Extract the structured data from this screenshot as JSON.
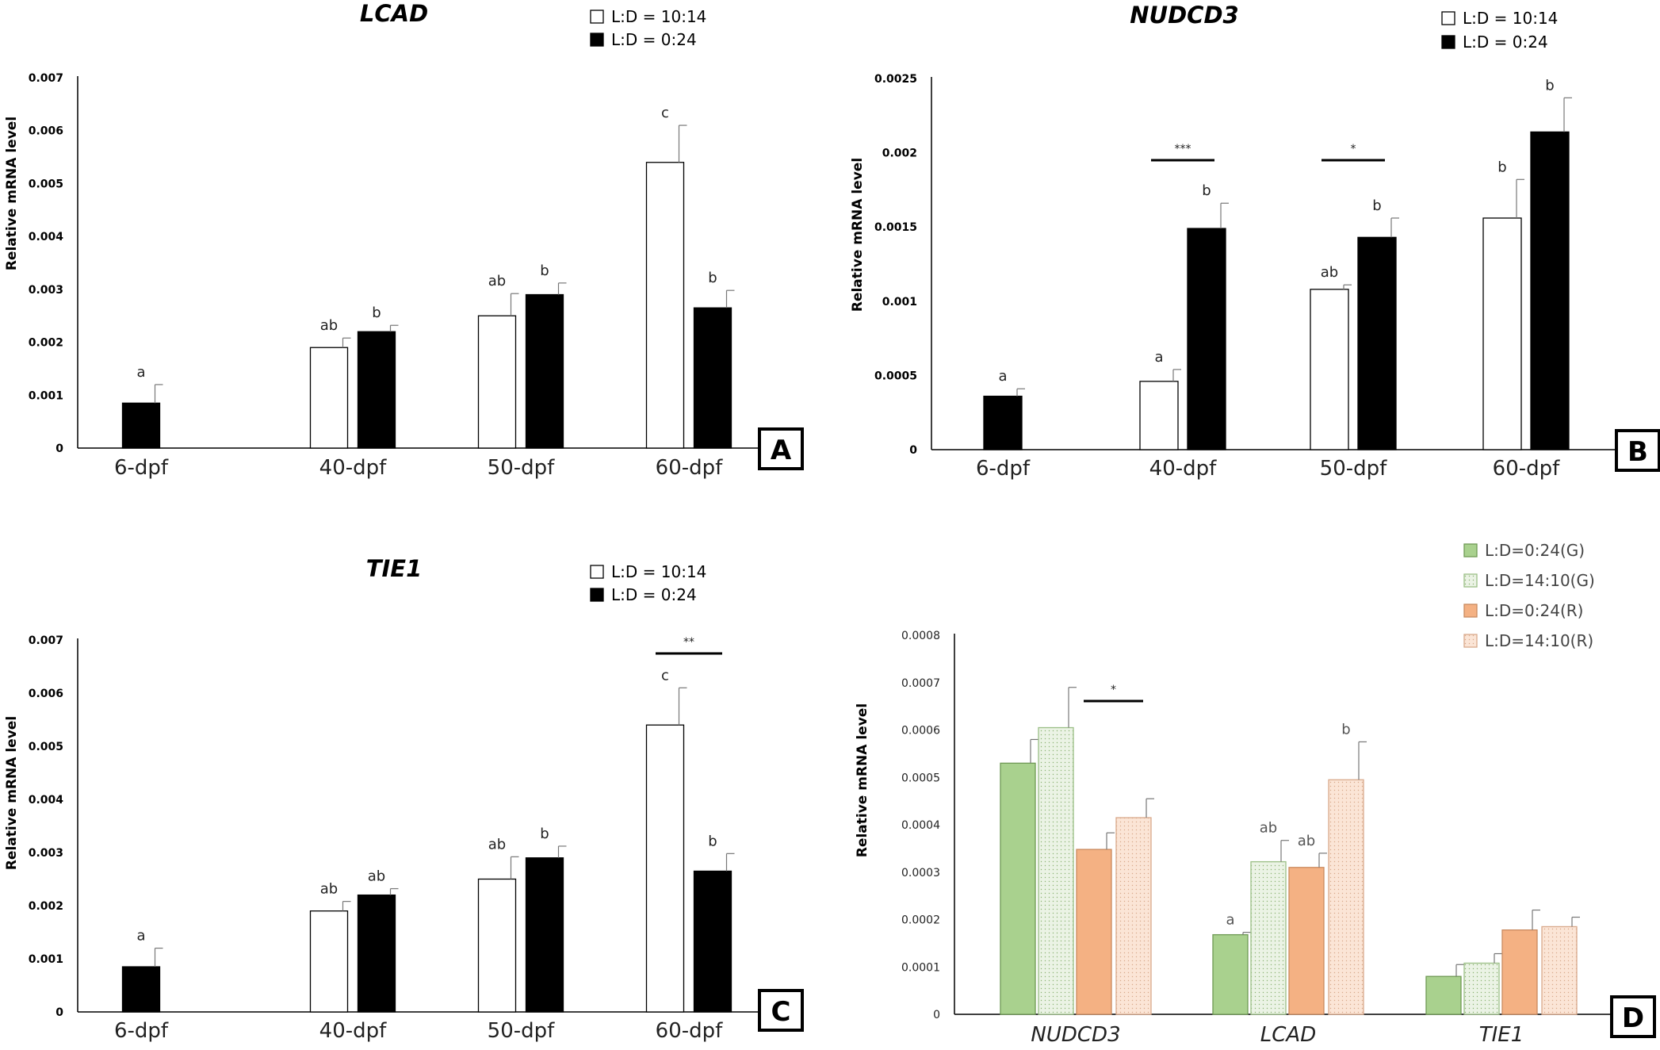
{
  "chart_data": [
    {
      "panel_label": "A",
      "type": "bar",
      "title": "LCAD",
      "ylabel": "Relative mRNA level",
      "categories": [
        "6-dpf",
        "40-dpf",
        "50-dpf",
        "60-dpf"
      ],
      "yticks": [
        "0",
        "0.001",
        "0.002",
        "0.003",
        "0.004",
        "0.005",
        "0.006",
        "0.007"
      ],
      "ylim": [
        0,
        0.007
      ],
      "grid": false,
      "legend_position": "top-right",
      "colors": {
        "L:D = 10:14": "#ffffff",
        "L:D = 0:24": "#000000"
      },
      "series": [
        {
          "name": "L:D = 10:14",
          "fill": "#ffffff",
          "values": [
            null,
            0.0019,
            0.0025,
            0.0054
          ],
          "errors": [
            null,
            0.00018,
            0.00042,
            0.0007
          ],
          "letters": [
            "",
            "ab",
            "ab",
            "c"
          ]
        },
        {
          "name": "L:D = 0:24",
          "fill": "#000000",
          "values": [
            0.00085,
            0.0022,
            0.0029,
            0.00265
          ],
          "errors": [
            0.00035,
            0.00012,
            0.00022,
            0.00033
          ],
          "letters": [
            "a",
            "b",
            "b",
            "b"
          ]
        }
      ],
      "significance": []
    },
    {
      "panel_label": "B",
      "type": "bar",
      "title": "NUDCD3",
      "ylabel": "Relative mRNA level",
      "categories": [
        "6-dpf",
        "40-dpf",
        "50-dpf",
        "60-dpf"
      ],
      "yticks": [
        "0",
        "0.0005",
        "0.001",
        "0.0015",
        "0.002",
        "0.0025"
      ],
      "ylim": [
        0,
        0.0025
      ],
      "grid": false,
      "legend_position": "top-right",
      "colors": {
        "L:D = 10:14": "#ffffff",
        "L:D = 0:24": "#000000"
      },
      "series": [
        {
          "name": "L:D = 10:14",
          "fill": "#ffffff",
          "values": [
            null,
            0.00046,
            0.00108,
            0.00156
          ],
          "errors": [
            null,
            8e-05,
            3e-05,
            0.00026
          ],
          "letters": [
            "",
            "a",
            "ab",
            "b"
          ]
        },
        {
          "name": "L:D = 0:24",
          "fill": "#000000",
          "values": [
            0.00036,
            0.00149,
            0.00143,
            0.00214
          ],
          "errors": [
            5e-05,
            0.00017,
            0.00013,
            0.00023
          ],
          "letters": [
            "a",
            "b",
            "b",
            "b"
          ]
        }
      ],
      "significance": [
        {
          "category_index": 1,
          "label": "***"
        },
        {
          "category_index": 2,
          "label": "*"
        }
      ]
    },
    {
      "panel_label": "C",
      "type": "bar",
      "title": "TIE1",
      "ylabel": "Relative mRNA level",
      "categories": [
        "6-dpf",
        "40-dpf",
        "50-dpf",
        "60-dpf"
      ],
      "yticks": [
        "0",
        "0.001",
        "0.002",
        "0.003",
        "0.004",
        "0.005",
        "0.006",
        "0.007"
      ],
      "ylim": [
        0,
        0.007
      ],
      "grid": false,
      "legend_position": "top-right",
      "colors": {
        "L:D = 10:14": "#ffffff",
        "L:D = 0:24": "#000000"
      },
      "series": [
        {
          "name": "L:D = 10:14",
          "fill": "#ffffff",
          "values": [
            null,
            0.0019,
            0.0025,
            0.0054
          ],
          "errors": [
            null,
            0.00018,
            0.00042,
            0.0007
          ],
          "letters": [
            "",
            "ab",
            "ab",
            "c"
          ]
        },
        {
          "name": "L:D = 0:24",
          "fill": "#000000",
          "values": [
            0.00085,
            0.0022,
            0.0029,
            0.00265
          ],
          "errors": [
            0.00035,
            0.00012,
            0.00022,
            0.00033
          ],
          "letters": [
            "a",
            "ab",
            "b",
            "b"
          ]
        }
      ],
      "significance": [
        {
          "category_index": 3,
          "label": "**"
        }
      ]
    },
    {
      "panel_label": "D",
      "type": "bar",
      "title": "",
      "ylabel": "Relative mRNA level",
      "categories": [
        "NUDCD3",
        "LCAD",
        "TIE1"
      ],
      "yticks": [
        "0",
        "0.0001",
        "0.0002",
        "0.0003",
        "0.0004",
        "0.0005",
        "0.0006",
        "0.0007",
        "0.0008"
      ],
      "ylim": [
        0,
        0.0008
      ],
      "grid": false,
      "legend_position": "top-right",
      "colors": {
        "L:D=0:24(G)": "#a9d18e",
        "L:D=14:10(G)": "#ebf3e5",
        "L:D=0:24(R)": "#f4b183",
        "L:D=14:10(R)": "#fbe5d6"
      },
      "series": [
        {
          "name": "L:D=0:24(G)",
          "fill": "#a9d18e",
          "stroke": "#6f9a55",
          "pattern": "none",
          "values": [
            0.00053,
            0.000168,
            8e-05
          ],
          "errors": [
            5e-05,
            5e-06,
            2.5e-05
          ],
          "letters": [
            "",
            "a",
            ""
          ]
        },
        {
          "name": "L:D=14:10(G)",
          "fill": "#ebf3e5",
          "stroke": "#9bbf86",
          "pattern": "dots",
          "values": [
            0.000605,
            0.000322,
            0.000108
          ],
          "errors": [
            8.5e-05,
            4.5e-05,
            2e-05
          ],
          "letters": [
            "",
            "ab",
            ""
          ]
        },
        {
          "name": "L:D=0:24(R)",
          "fill": "#f4b183",
          "stroke": "#c98a5f",
          "pattern": "none",
          "values": [
            0.000348,
            0.00031,
            0.000178
          ],
          "errors": [
            3.5e-05,
            3e-05,
            4.2e-05
          ],
          "letters": [
            "",
            "ab",
            ""
          ]
        },
        {
          "name": "L:D=14:10(R)",
          "fill": "#fbe5d6",
          "stroke": "#d9a98b",
          "pattern": "dots",
          "values": [
            0.000415,
            0.000495,
            0.000185
          ],
          "errors": [
            4e-05,
            8e-05,
            2e-05
          ],
          "letters": [
            "",
            "b",
            ""
          ]
        }
      ],
      "significance": [
        {
          "category_index": 0,
          "label": "*"
        }
      ]
    }
  ]
}
